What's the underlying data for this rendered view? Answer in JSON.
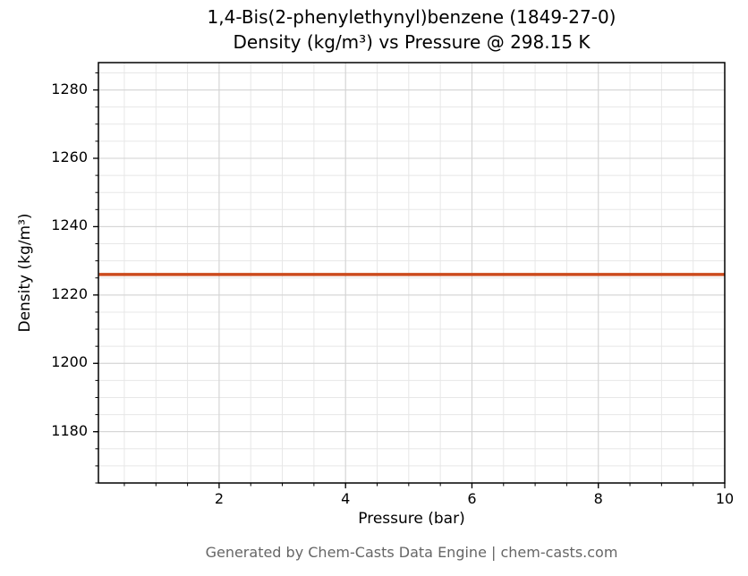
{
  "chart_data": {
    "type": "line",
    "title": "1,4-Bis(2-phenylethynyl)benzene (1849-27-0)",
    "subtitle": "Density (kg/m³) vs Pressure @ 298.15 K",
    "xlabel": "Pressure (bar)",
    "ylabel": "Density (kg/m³)",
    "xlim": [
      0.09,
      10.0
    ],
    "ylim": [
      1165,
      1288
    ],
    "x_ticks": [
      2,
      4,
      6,
      8,
      10
    ],
    "y_ticks": [
      1180,
      1200,
      1220,
      1240,
      1260,
      1280
    ],
    "x_minor_step": 0.5,
    "y_minor_step": 5,
    "grid": true,
    "legend": "none",
    "series": [
      {
        "name": "density",
        "color": "#cc4b1e",
        "x": [
          0.1,
          10.0
        ],
        "y": [
          1226,
          1226
        ]
      }
    ],
    "footer": "Generated by Chem-Casts Data Engine | chem-casts.com"
  }
}
